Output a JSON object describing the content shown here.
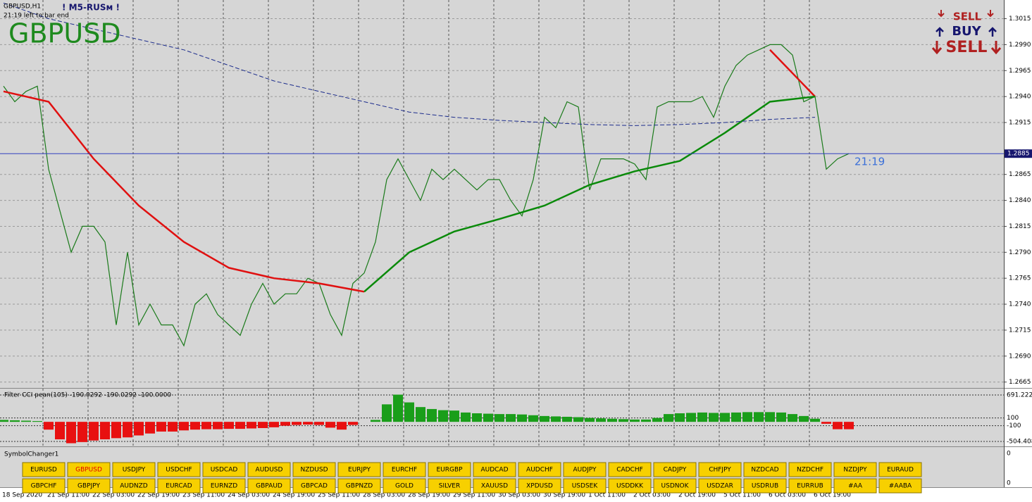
{
  "header": {
    "symbol_period": "GBPUSD,H1",
    "indicator": "! M5-RUSм !",
    "timer": "21:19 left to bar end",
    "symbol": "GBPUSD"
  },
  "signals": {
    "sell_top": "SELL",
    "buy": "BUY",
    "sell_bottom": "SELL"
  },
  "chart_data": [
    {
      "type": "line",
      "xlabels": [
        "18 Sep 2020",
        "21 Sep 11:00",
        "22 Sep 03:00",
        "22 Sep 19:00",
        "23 Sep 11:00",
        "24 Sep 03:00",
        "24 Sep 19:00",
        "25 Sep 11:00",
        "28 Sep 03:00",
        "28 Sep 19:00",
        "29 Sep 11:00",
        "30 Sep 03:00",
        "30 Sep 19:00",
        "1 Oct 11:00",
        "2 Oct 03:00",
        "2 Oct 19:00",
        "5 Oct 11:00",
        "6 Oct 03:00",
        "6 Oct 19:00"
      ],
      "series": [
        {
          "color": "#1a7a1a",
          "values": [
            1.295,
            1.2935,
            1.2945,
            1.295,
            1.287,
            1.283,
            1.279,
            1.2815,
            1.2815,
            1.28,
            1.272,
            1.279,
            1.272,
            1.274,
            1.272,
            1.272,
            1.27,
            1.274,
            1.275,
            1.273,
            1.272,
            1.271,
            1.274,
            1.276,
            1.274,
            1.275,
            1.275,
            1.2765,
            1.276,
            1.273,
            1.271,
            1.276,
            1.277,
            1.28,
            1.286,
            1.288,
            1.286,
            1.284,
            1.287,
            1.286,
            1.287,
            1.286,
            1.285,
            1.286,
            1.286,
            1.284,
            1.2825,
            1.286,
            1.292,
            1.291,
            1.2935,
            1.293,
            1.285,
            1.288,
            1.288,
            1.288,
            1.2875,
            1.286,
            1.293,
            1.2935,
            1.2935,
            1.2935,
            1.294,
            1.292,
            1.295,
            1.297,
            1.298,
            1.2985,
            1.299,
            1.299,
            1.298,
            1.2935,
            1.294,
            1.287,
            1.288,
            1.2885
          ]
        },
        {
          "color": "#e01010",
          "values": [
            1.2945,
            1.2935,
            1.288,
            1.2835,
            1.28,
            1.2775,
            1.2765,
            1.276,
            1.2752,
            null,
            null,
            null,
            null,
            null,
            null,
            null,
            null,
            1.2985,
            1.294
          ]
        },
        {
          "color": "#0a8a0a",
          "values": [
            null,
            null,
            null,
            null,
            null,
            null,
            null,
            null,
            1.2752,
            1.279,
            1.281,
            1.2822,
            1.2835,
            1.2855,
            1.2868,
            1.2878,
            1.2905,
            1.2935,
            1.294
          ]
        },
        {
          "color": "#1c2c8c",
          "dashed": true,
          "values": [
            1.303,
            1.3015,
            1.3005,
            1.2995,
            1.2985,
            1.297,
            1.2955,
            1.2945,
            1.2935,
            1.2925,
            1.292,
            1.2917,
            1.2915,
            1.2913,
            1.2912,
            1.2913,
            1.2915,
            1.2918,
            1.292
          ]
        }
      ],
      "ylim": [
        1.266,
        1.3033
      ],
      "yticks": [
        1.3015,
        {
          "value": 1.299,
          "label": "1.2990"
        },
        1.2965,
        {
          "value": 1.294,
          "label": "1.2940"
        },
        1.2915,
        1.2865,
        {
          "value": 1.284,
          "label": "1.2840"
        },
        1.2815,
        {
          "value": 1.279,
          "label": "1.2790"
        },
        1.2765,
        {
          "value": 1.274,
          "label": "1.2740"
        },
        1.2715,
        {
          "value": 1.269,
          "label": "1.2690"
        },
        1.2665
      ],
      "current_price": 1.2885,
      "timer_label": "21:19",
      "grid": true
    },
    {
      "type": "bar",
      "title": "Filter CCI pean(105)  -190.0292 -190.0292 -100.0000",
      "values": [
        50,
        40,
        30,
        20,
        -200,
        -450,
        -550,
        -520,
        -480,
        -450,
        -420,
        -400,
        -350,
        -300,
        -250,
        -250,
        -220,
        -200,
        -190,
        -190,
        -180,
        -180,
        -170,
        -160,
        -140,
        -100,
        -80,
        -70,
        -80,
        -150,
        -200,
        -80,
        0,
        50,
        450,
        700,
        500,
        380,
        330,
        300,
        290,
        240,
        220,
        210,
        200,
        200,
        190,
        170,
        150,
        140,
        130,
        120,
        100,
        90,
        80,
        70,
        60,
        60,
        100,
        200,
        220,
        230,
        240,
        230,
        230,
        240,
        250,
        250,
        250,
        240,
        200,
        150,
        80,
        -50,
        -190,
        -190
      ],
      "colors": {
        "positive": "#1a9e1a",
        "negative": "#e81010"
      },
      "ylim": [
        -613,
        854
      ],
      "yticks": [
        691.2221,
        100,
        -100,
        -504.4083
      ]
    }
  ],
  "symbol_changer": {
    "title": "SymbolChanger1",
    "active_index": 1,
    "scale_labels": [
      0,
      0
    ],
    "buttons": [
      [
        "EURUSD",
        "GBPUSD",
        "USDJPY",
        "USDCHF",
        "USDCAD",
        "AUDUSD",
        "NZDUSD",
        "EURJPY",
        "EURCHF",
        "EURGBP",
        "AUDCAD",
        "AUDCHF",
        "AUDJPY",
        "CADCHF",
        "CADJPY",
        "CHFJPY",
        "NZDCAD",
        "NZDCHF",
        "NZDJPY",
        "EURAUD"
      ],
      [
        "GBPCHF",
        "GBPJPY",
        "AUDNZD",
        "EURCAD",
        "EURNZD",
        "GBPAUD",
        "GBPCAD",
        "GBPNZD",
        "GOLD",
        "SILVER",
        "XAUUSD",
        "XPDUSD",
        "USDSEK",
        "USDDKK",
        "USDNOK",
        "USDZAR",
        "USDRUB",
        "EURRUB",
        "#AA",
        "#AABA"
      ]
    ]
  }
}
